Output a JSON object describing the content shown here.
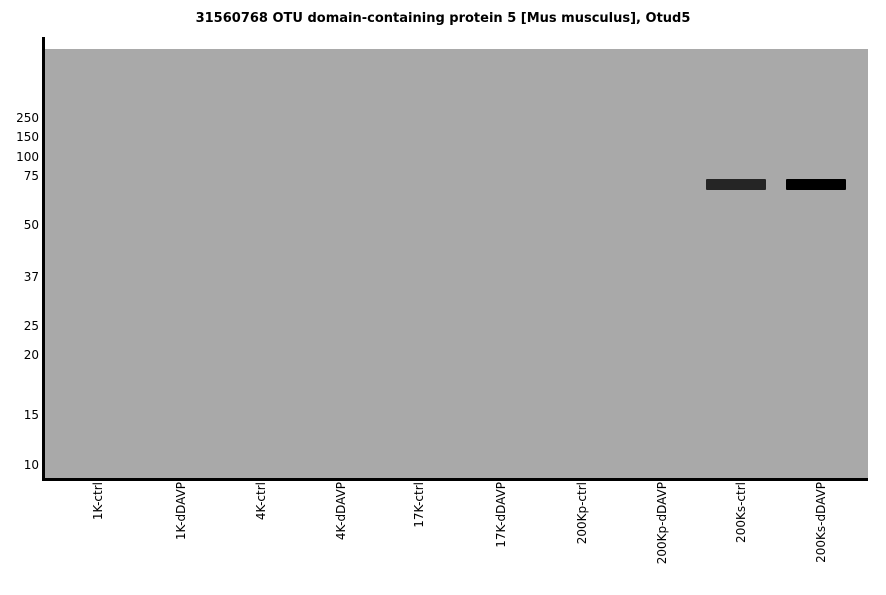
{
  "chart_data": {
    "type": "western_blot",
    "title": "31560768 OTU domain-containing protein 5 [Mus musculus], Otud5",
    "categories": [
      "1K-ctrl",
      "1K-dDAVP",
      "4K-ctrl",
      "4K-dDAVP",
      "17K-ctrl",
      "17K-dDAVP",
      "200Kp-ctrl",
      "200Kp-dDAVP",
      "200Ks-ctrl",
      "200Ks-dDAVP"
    ],
    "mw_markers": [
      "250",
      "150",
      "100",
      "75",
      "50",
      "37",
      "25",
      "20",
      "15",
      "10"
    ],
    "bands": [
      {
        "lane": "200Ks-ctrl",
        "lane_index": 8,
        "approx_mw_kda": 72,
        "color": "#252525"
      },
      {
        "lane": "200Ks-dDAVP",
        "lane_index": 9,
        "approx_mw_kda": 72,
        "color": "#000000"
      }
    ],
    "colors": {
      "gel_background": "#a9a9a9",
      "axis": "#000000",
      "text": "#000000",
      "figure_background": "#ffffff"
    },
    "layout_hints": {
      "grid": false,
      "legend": false,
      "x_tick_rotation_deg": 90,
      "y_axis": "molecular weight markers, unlabeled units"
    }
  }
}
